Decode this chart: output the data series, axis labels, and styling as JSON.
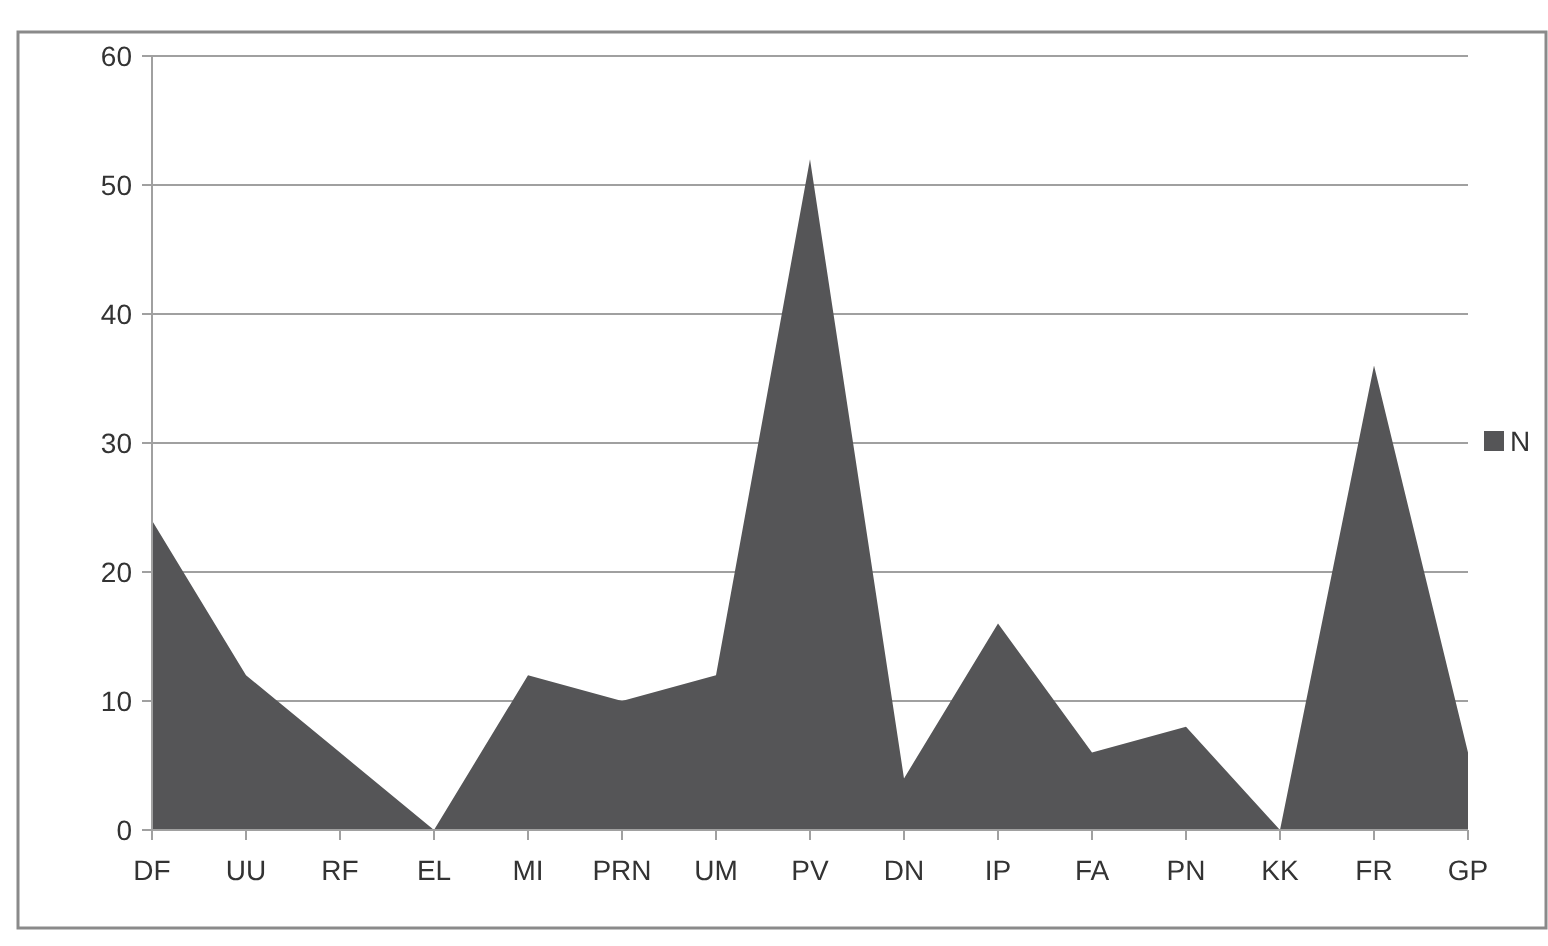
{
  "chart_data": {
    "type": "area",
    "categories": [
      "DF",
      "UU",
      "RF",
      "EL",
      "MI",
      "PRN",
      "UM",
      "PV",
      "DN",
      "IP",
      "FA",
      "PN",
      "KK",
      "FR",
      "GP"
    ],
    "series": [
      {
        "name": "N",
        "color": "#555557",
        "values": [
          24,
          12,
          6,
          0,
          12,
          10,
          12,
          52,
          4,
          16,
          6,
          8,
          0,
          36,
          6
        ]
      }
    ],
    "ylim": [
      0,
      60
    ],
    "yticks": [
      0,
      10,
      20,
      30,
      40,
      50,
      60
    ],
    "grid": "y",
    "legend": "right"
  }
}
